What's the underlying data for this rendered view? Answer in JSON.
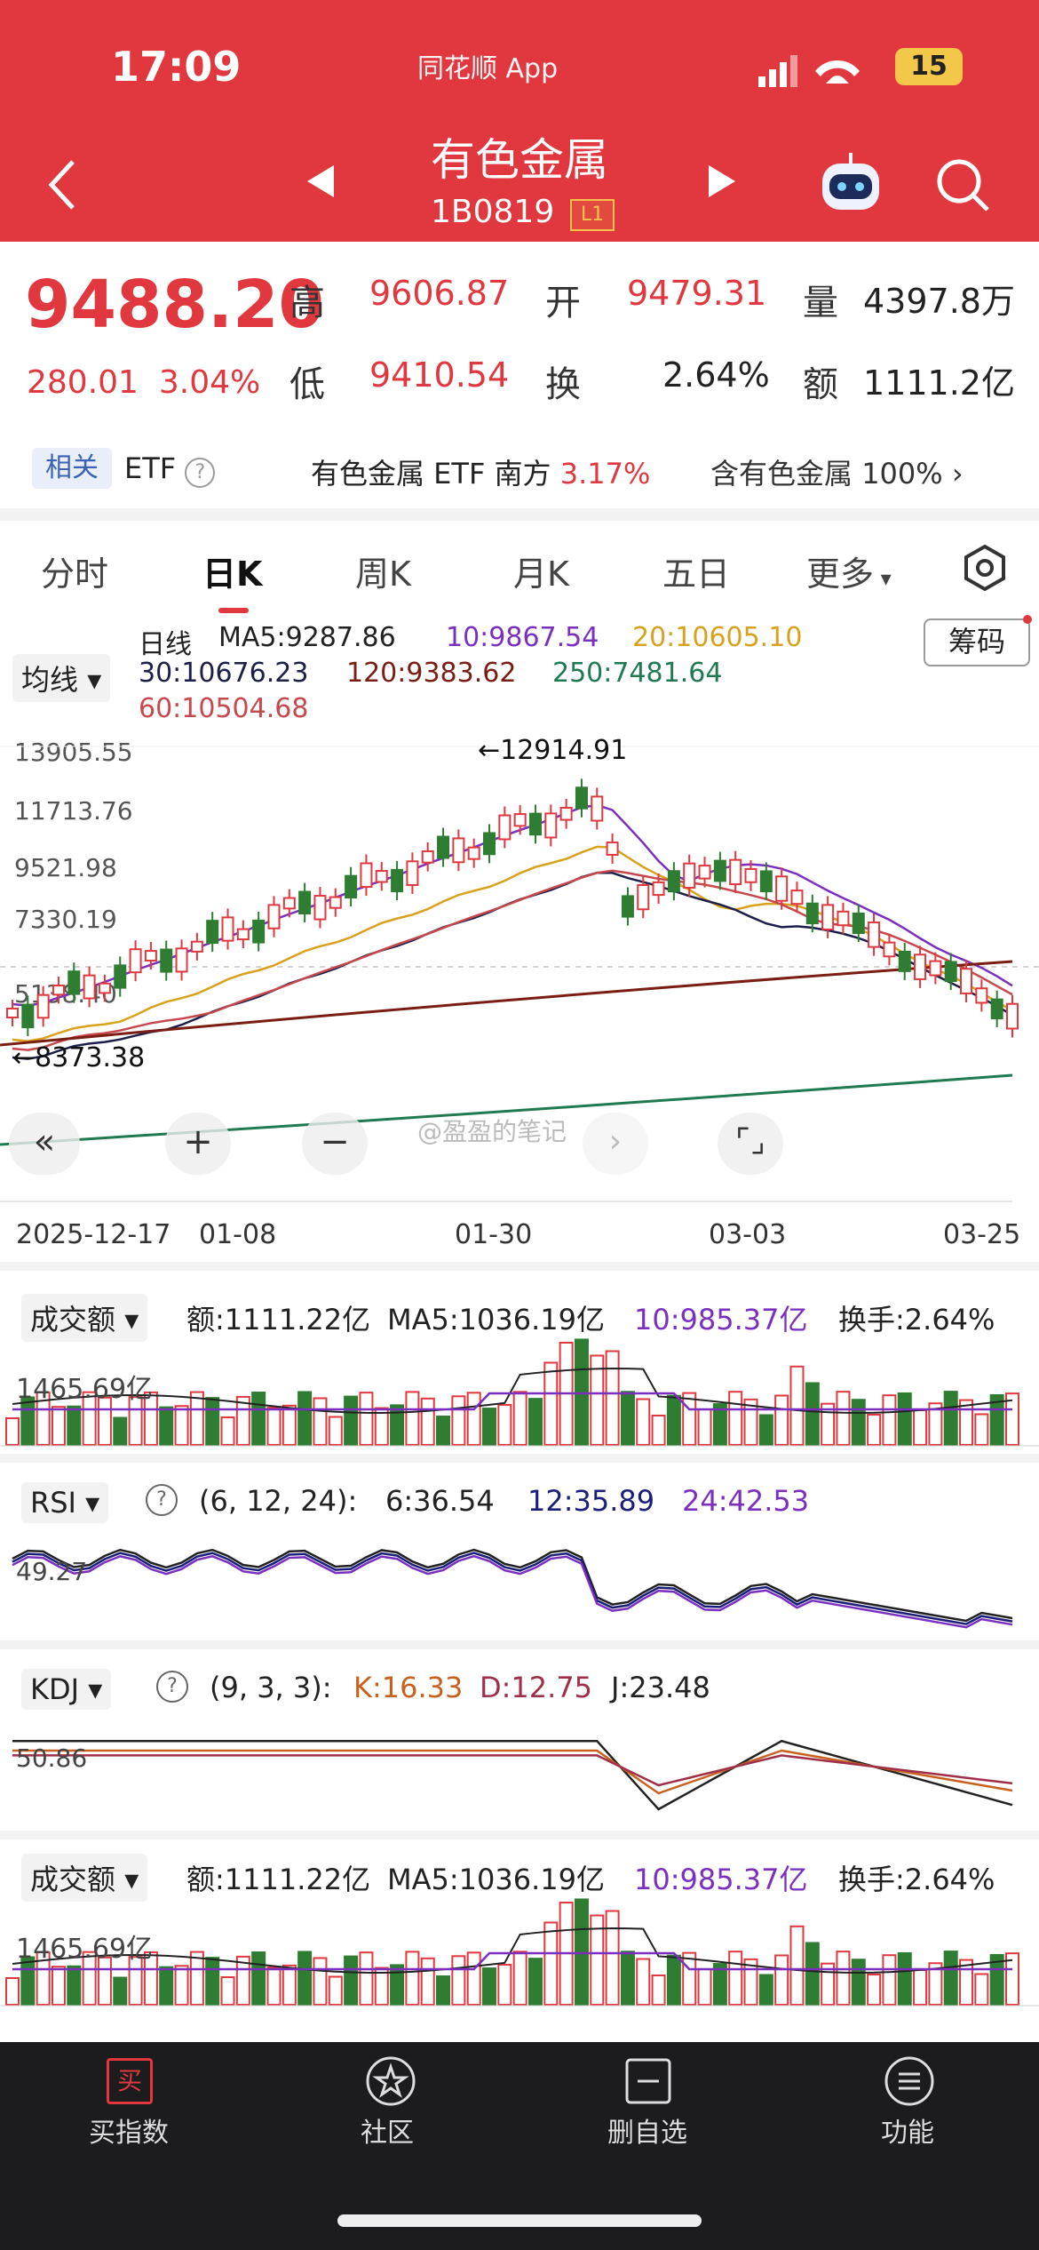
{
  "status_bar": {
    "time": "17:09",
    "app": "同花顺 App",
    "battery": "15"
  },
  "header": {
    "title": "有色金属",
    "code": "1B0819",
    "level": "L1"
  },
  "quote": {
    "price": "9488.20",
    "change": "280.01",
    "change_pct": "3.04%",
    "high_label": "高",
    "high": "9606.87",
    "open_label": "开",
    "open": "9479.31",
    "vol_label": "量",
    "vol": "4397.8万",
    "low_label": "低",
    "low": "9410.54",
    "turn_label": "换",
    "turn": "2.64%",
    "amt_label": "额",
    "amt": "1111.2亿"
  },
  "related": {
    "tag": "相关",
    "etf": "ETF",
    "etf_name": "有色金属 ETF 南方",
    "etf_pct": "3.17%",
    "contains": "含有色金属",
    "contains_pct": "100%"
  },
  "tabs": [
    "分时",
    "日K",
    "周K",
    "月K",
    "五日",
    "更多"
  ],
  "ma": {
    "selector": "均线",
    "day": "日线",
    "ma5": "MA5:9287.86",
    "ma10": "10:9867.54",
    "ma20": "20:10605.10",
    "ma30": "30:10676.23",
    "ma120": "120:9383.62",
    "ma250": "250:7481.64",
    "ma60": "60:10504.68",
    "chips": "筹码"
  },
  "kline": {
    "y_ticks": [
      "13905.55",
      "11713.76",
      "9521.98",
      "7330.19",
      "5138.40"
    ],
    "high_mark": "←12914.91",
    "low_mark": "←8373.38",
    "dates": [
      "2025-12-17",
      "01-08",
      "01-30",
      "03-03",
      "03-25"
    ],
    "watermark": "@盈盈的笔记"
  },
  "vol_panel": {
    "selector": "成交额",
    "amt": "额:1111.22亿",
    "ma5": "MA5:1036.19亿",
    "ma10": "10:985.37亿",
    "turn": "换手:2.64%",
    "level": "1465.69亿"
  },
  "rsi_panel": {
    "selector": "RSI",
    "params": "(6, 12, 24):",
    "r6": "6:36.54",
    "r12": "12:35.89",
    "r24": "24:42.53",
    "level": "49.27"
  },
  "kdj_panel": {
    "selector": "KDJ",
    "params": "(9, 3, 3):",
    "k": "K:16.33",
    "d": "D:12.75",
    "j": "J:23.48",
    "level": "50.86"
  },
  "vol_panel2": {
    "selector": "成交额",
    "amt": "额:1111.22亿",
    "ma5": "MA5:1036.19亿",
    "ma10": "10:985.37亿",
    "turn": "换手:2.64%",
    "level": "1465.69亿"
  },
  "bottom_nav": [
    {
      "icon": "买",
      "label": "买指数"
    },
    {
      "label": "社区"
    },
    {
      "label": "删自选"
    },
    {
      "label": "功能"
    }
  ],
  "colors": {
    "brand": "#e0383e",
    "up": "#e0383e",
    "down": "#2e7d32",
    "ma5": "#222222",
    "ma10": "#7b2fbf",
    "ma20": "#d8a21c",
    "ma30": "#1b1f4a",
    "ma120": "#7a1e14",
    "ma250": "#1f7a52",
    "ma60": "#c7484d"
  }
}
